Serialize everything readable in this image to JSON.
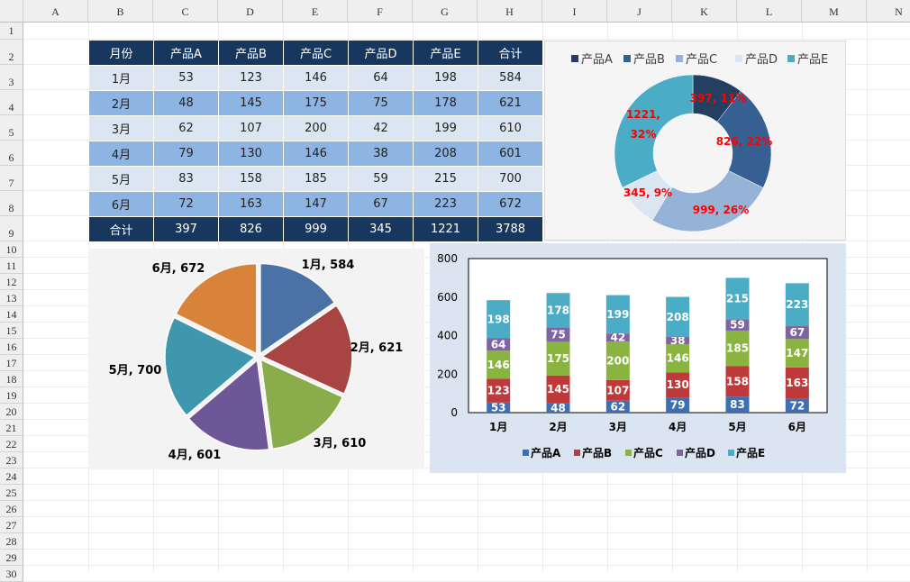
{
  "sheet": {
    "columns": [
      "A",
      "B",
      "C",
      "D",
      "E",
      "F",
      "G",
      "H",
      "I",
      "J",
      "K",
      "L",
      "M",
      "N"
    ],
    "rows": [
      "1",
      "2",
      "3",
      "4",
      "5",
      "6",
      "7",
      "8",
      "9",
      "10",
      "11",
      "12",
      "13",
      "14",
      "15",
      "16",
      "17",
      "18",
      "19",
      "20",
      "21",
      "22",
      "23",
      "24",
      "25",
      "26",
      "27",
      "28",
      "29",
      "30"
    ]
  },
  "table": {
    "headers": [
      "月份",
      "产品A",
      "产品B",
      "产品C",
      "产品D",
      "产品E",
      "合计"
    ],
    "rows": [
      [
        "1月",
        "53",
        "123",
        "146",
        "64",
        "198",
        "584"
      ],
      [
        "2月",
        "48",
        "145",
        "175",
        "75",
        "178",
        "621"
      ],
      [
        "3月",
        "62",
        "107",
        "200",
        "42",
        "199",
        "610"
      ],
      [
        "4月",
        "79",
        "130",
        "146",
        "38",
        "208",
        "601"
      ],
      [
        "5月",
        "83",
        "158",
        "185",
        "59",
        "215",
        "700"
      ],
      [
        "6月",
        "72",
        "163",
        "147",
        "67",
        "223",
        "672"
      ]
    ],
    "total": [
      "合计",
      "397",
      "826",
      "999",
      "345",
      "1221",
      "3788"
    ]
  },
  "chart_data": [
    {
      "type": "pie",
      "variant": "doughnut",
      "categories": [
        "产品A",
        "产品B",
        "产品C",
        "产品D",
        "产品E"
      ],
      "values": [
        397,
        826,
        999,
        345,
        1221
      ],
      "data_labels": [
        "397, 11%",
        "826, 22%",
        "999, 26%",
        "345, 9%",
        "1221, 32%"
      ],
      "colors": [
        "#243f60",
        "#366092",
        "#95b3d7",
        "#dce6f1",
        "#4bacc6"
      ],
      "label_color": "#ff0000",
      "legend": "top"
    },
    {
      "type": "pie",
      "categories": [
        "1月",
        "2月",
        "3月",
        "4月",
        "5月",
        "6月"
      ],
      "values": [
        584,
        621,
        610,
        601,
        700,
        672
      ],
      "data_labels": [
        "1月, 584",
        "2月, 621",
        "3月, 610",
        "4月, 601",
        "5月, 700",
        "6月, 672"
      ],
      "colors": [
        "#4a72a6",
        "#a84442",
        "#8aac4a",
        "#6e5796",
        "#3f97ad",
        "#d9823a"
      ],
      "legend": "none"
    },
    {
      "type": "bar",
      "stacked": true,
      "categories": [
        "1月",
        "2月",
        "3月",
        "4月",
        "5月",
        "6月"
      ],
      "ylim": [
        0,
        800
      ],
      "yticks": [
        "0",
        "200",
        "400",
        "600",
        "800"
      ],
      "legend": "bottom",
      "series": [
        {
          "name": "产品A",
          "values": [
            53,
            48,
            62,
            79,
            83,
            72
          ],
          "color": "#3d6fb5"
        },
        {
          "name": "产品B",
          "values": [
            123,
            145,
            107,
            130,
            158,
            163
          ],
          "color": "#c0393a"
        },
        {
          "name": "产品C",
          "values": [
            146,
            175,
            200,
            146,
            185,
            147
          ],
          "color": "#8ab440"
        },
        {
          "name": "产品D",
          "values": [
            64,
            75,
            42,
            38,
            59,
            67
          ],
          "color": "#8064a2"
        },
        {
          "name": "产品E",
          "values": [
            198,
            178,
            199,
            208,
            215,
            223
          ],
          "color": "#4bacc6"
        }
      ]
    }
  ]
}
